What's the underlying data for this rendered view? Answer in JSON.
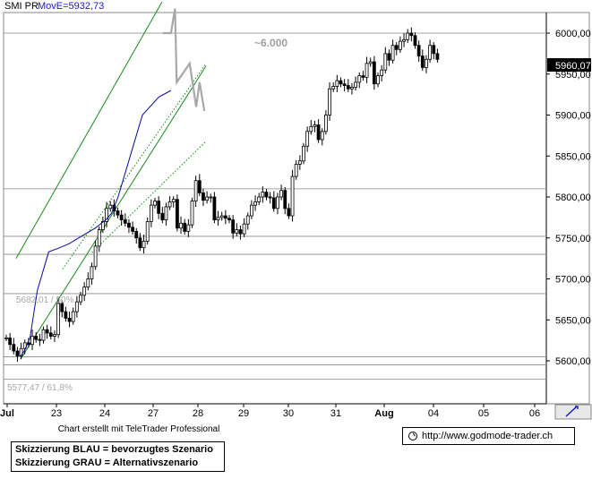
{
  "header": {
    "symbol": "SMI PR",
    "indicator_label": "MovE=5932,73"
  },
  "annotations": {
    "target_label": "~6.000",
    "fib_label_1": "5682,01 / 50%",
    "fib_label_2": "5577,47 / 61,8%",
    "price_marker": "5960,07"
  },
  "credit": "Chart erstellt mit TeleTrader Professional",
  "legend": {
    "line1": "Skizzierung BLAU = bevorzugtes Szenario",
    "line2": "Skizzierung GRAU = Alternativszenario"
  },
  "url": "http://www.godmode-trader.ch",
  "colors": {
    "candles": "#000000",
    "moving_average": "#0a0a9a",
    "channel": "#1a8a1a",
    "alt_scenario": "#a8a8a8",
    "grid": "#888888",
    "price_marker_bg": "#000000"
  },
  "chart_data": {
    "type": "candlestick",
    "title": "",
    "ylim": [
      5565,
      6025
    ],
    "y_ticks": [
      5600,
      5650,
      5700,
      5750,
      5800,
      5850,
      5900,
      5950,
      6000
    ],
    "y_tick_labels": [
      "5600,00",
      "5650,00",
      "5700,00",
      "5750,00",
      "5800,00",
      "5850,00",
      "5900,00",
      "5950,00",
      "6000,00"
    ],
    "x_tick_labels": [
      "Jul",
      "23",
      "24",
      "27",
      "28",
      "29",
      "30",
      "31",
      "Aug",
      "04",
      "05",
      "06"
    ],
    "horizontal_levels": [
      6000,
      5810,
      5752,
      5730,
      5682.01,
      5605,
      5595,
      5577.47
    ],
    "closes": [
      5628,
      5620,
      5612,
      5606,
      5615,
      5622,
      5620,
      5630,
      5626,
      5625,
      5638,
      5634,
      5630,
      5632,
      5670,
      5660,
      5652,
      5648,
      5660,
      5672,
      5680,
      5690,
      5700,
      5715,
      5740,
      5760,
      5770,
      5786,
      5790,
      5783,
      5778,
      5772,
      5768,
      5763,
      5758,
      5750,
      5738,
      5746,
      5770,
      5790,
      5795,
      5780,
      5772,
      5788,
      5794,
      5797,
      5762,
      5768,
      5758,
      5766,
      5795,
      5820,
      5805,
      5796,
      5800,
      5800,
      5772,
      5775,
      5777,
      5774,
      5772,
      5756,
      5760,
      5755,
      5767,
      5777,
      5790,
      5794,
      5800,
      5806,
      5800,
      5799,
      5786,
      5800,
      5808,
      5786,
      5777,
      5825,
      5840,
      5844,
      5862,
      5880,
      5886,
      5888,
      5870,
      5880,
      5900,
      5932,
      5935,
      5942,
      5938,
      5936,
      5932,
      5934,
      5940,
      5948,
      5946,
      5963,
      5965,
      5938,
      5948,
      5955,
      5975,
      5967,
      5985,
      5980,
      5990,
      5992,
      6000,
      5997,
      5985,
      5972,
      5958,
      5968,
      5985,
      5975,
      5968
    ],
    "moving_average": [
      [
        5608,
        5606
      ],
      [
        5650,
        5612
      ],
      [
        5720,
        5628
      ],
      [
        5770,
        5660
      ],
      [
        5810,
        5686
      ],
      [
        5950,
        5733
      ],
      [
        6085,
        5738
      ],
      [
        6200,
        5743
      ],
      [
        6350,
        5752
      ],
      [
        6520,
        5762
      ],
      [
        6650,
        5772
      ],
      [
        6720,
        5780
      ],
      [
        6800,
        5800
      ],
      [
        6950,
        5850
      ],
      [
        7100,
        5900
      ],
      [
        7300,
        5922
      ],
      [
        7450,
        5930
      ]
    ],
    "channel_upper": [
      [
        5550,
        5725
      ],
      [
        7340,
        6038
      ]
    ],
    "channel_lower": [
      [
        5605,
        5602
      ],
      [
        7880,
        5960
      ]
    ],
    "dotted_upper": [
      [
        6120,
        5712
      ],
      [
        7880,
        5963
      ]
    ],
    "dotted_lower": [
      [
        6480,
        5732
      ],
      [
        7880,
        5868
      ]
    ],
    "alt_scenario": [
      [
        7350,
        6000
      ],
      [
        7450,
        6000
      ],
      [
        7500,
        6030
      ],
      [
        7520,
        5940
      ],
      [
        7680,
        5963
      ],
      [
        7760,
        5910
      ],
      [
        7800,
        5940
      ],
      [
        7860,
        5905
      ]
    ]
  }
}
